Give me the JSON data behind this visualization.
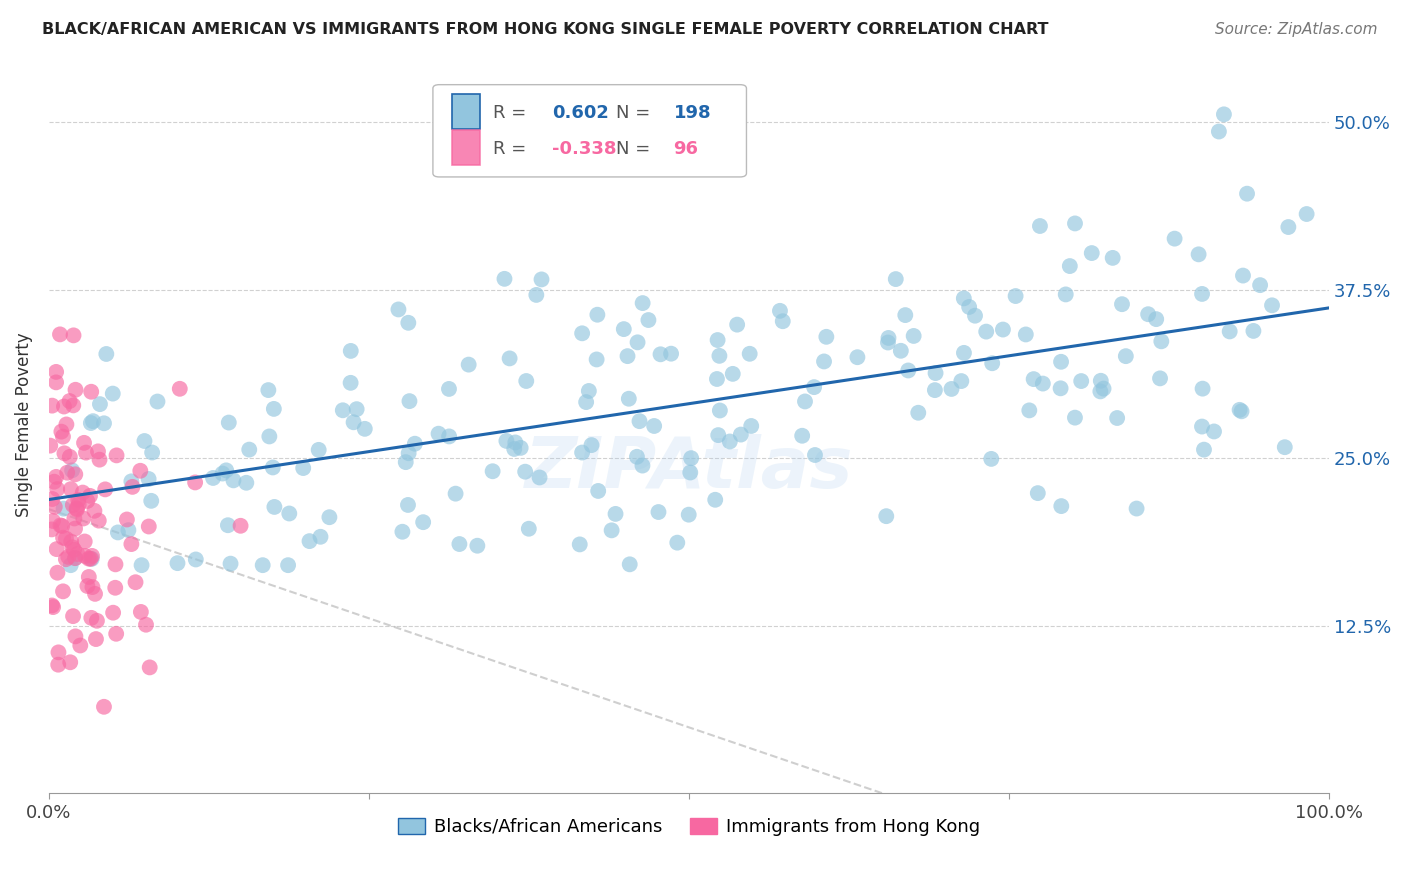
{
  "title": "BLACK/AFRICAN AMERICAN VS IMMIGRANTS FROM HONG KONG SINGLE FEMALE POVERTY CORRELATION CHART",
  "source": "Source: ZipAtlas.com",
  "ylabel": "Single Female Poverty",
  "ytick_labels": [
    "12.5%",
    "25.0%",
    "37.5%",
    "50.0%"
  ],
  "ytick_values": [
    0.125,
    0.25,
    0.375,
    0.5
  ],
  "xlim": [
    0.0,
    1.0
  ],
  "ylim": [
    0.0,
    0.55
  ],
  "blue_R": 0.602,
  "blue_N": 198,
  "pink_R": -0.338,
  "pink_N": 96,
  "blue_color": "#92c5de",
  "pink_color": "#f768a1",
  "blue_line_color": "#2166ac",
  "pink_line_color": "#cccccc",
  "watermark": "ZIPAtlas",
  "legend_blue_label": "Blacks/African Americans",
  "legend_pink_label": "Immigrants from Hong Kong"
}
